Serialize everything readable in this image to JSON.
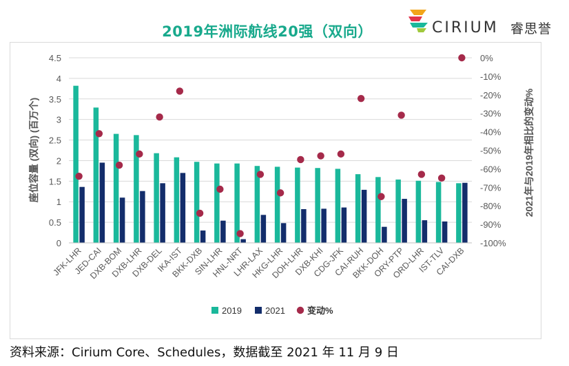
{
  "brand": {
    "name": "CIRIUM",
    "name_cn": "睿思誉"
  },
  "source_note": "资料来源：Cirium Core、Schedules，数据截至 2021 年 11 月 9 日",
  "colors": {
    "s2019": "#1ab89b",
    "s2021": "#132d6b",
    "change": "#a52a4a",
    "title": "#18a98c",
    "grid": "#d9d9d9"
  },
  "chart_data": {
    "type": "bar",
    "title": "2019年洲际航线20强（双向）",
    "ylabel": "座位容量 (双向) (百万个)",
    "y2label": "2021年与2019年相比的变动%",
    "ylim": [
      0,
      4.5
    ],
    "y2lim": [
      -100,
      0
    ],
    "yticks": [
      "0",
      "0.5",
      "1",
      "1.5",
      "2",
      "2.5",
      "3",
      "3.5",
      "4",
      "4.5"
    ],
    "y2ticks": [
      "0%",
      "-10%",
      "-20%",
      "-30%",
      "-40%",
      "-50%",
      "-60%",
      "-70%",
      "-80%",
      "-90%",
      "-100%"
    ],
    "categories": [
      "JFK-LHR",
      "JED-CAI",
      "DXB-BOM",
      "DXB-LHR",
      "DXB-DEL",
      "IKA-IST",
      "BKK-DXB",
      "SIN-LHR",
      "HNL-NRT",
      "LHR-LAX",
      "HKG-LHR",
      "DOH-LHR",
      "DXB-KHI",
      "CDG-JFK",
      "CAI-RUH",
      "BKK-DOH",
      "ORY-PTP",
      "ORD-LHR",
      "IST-TLV",
      "CAI-DXB"
    ],
    "series": [
      {
        "name": "2019",
        "axis": "left",
        "kind": "bar",
        "values": [
          3.82,
          3.29,
          2.65,
          2.62,
          2.18,
          2.08,
          1.97,
          1.93,
          1.93,
          1.87,
          1.85,
          1.83,
          1.82,
          1.8,
          1.67,
          1.6,
          1.54,
          1.51,
          1.48,
          1.45
        ]
      },
      {
        "name": "2021",
        "axis": "left",
        "kind": "bar",
        "values": [
          1.36,
          1.95,
          1.1,
          1.26,
          1.45,
          1.7,
          0.3,
          0.54,
          0.09,
          0.68,
          0.48,
          0.82,
          0.83,
          0.86,
          1.29,
          0.39,
          1.07,
          0.55,
          0.52,
          1.46
        ]
      },
      {
        "name": "变动%",
        "axis": "right",
        "kind": "scatter",
        "values": [
          -64,
          -41,
          -58,
          -52,
          -32,
          -18,
          -84,
          -71,
          -95,
          -63,
          -73,
          -55,
          -53,
          -52,
          -22,
          -75,
          -31,
          -63,
          -65,
          0
        ]
      }
    ],
    "legend": {
      "position": "bottom",
      "labels": [
        "2019",
        "2021",
        "变动%"
      ]
    }
  }
}
